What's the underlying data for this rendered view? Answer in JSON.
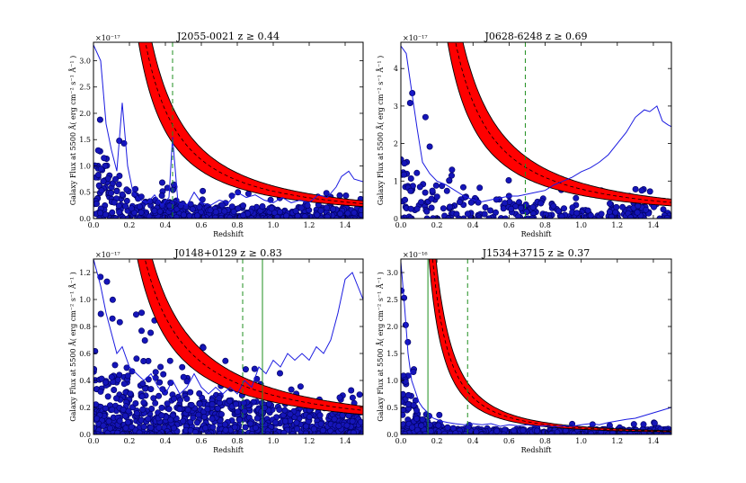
{
  "figure": {
    "axis_xlabel": "Redshift",
    "axis_ylabel": "Galaxy Flux at 5500 Å( erg cm⁻² s⁻¹ Å⁻¹ )"
  },
  "colors": {
    "points": "#1515b8",
    "points_edge": "#000060",
    "curve_line": "#1a1ae0",
    "band_fill": "#ff0000",
    "band_edge": "#000000",
    "zmin_line": "#1f8f1f"
  },
  "chart_data": [
    {
      "type": "scatter",
      "title": "J2055-0021 z ≥ 0.44",
      "xlabel": "Redshift",
      "ylabel": "Galaxy Flux at 5500 Å( erg cm⁻² s⁻¹ Å⁻¹ )",
      "xlim": [
        0.0,
        1.5
      ],
      "ylim": [
        0.0,
        3.35
      ],
      "y_scale_label": "×10⁻¹⁷",
      "x_ticks": [
        "0.0",
        "0.2",
        "0.4",
        "0.6",
        "0.8",
        "1.0",
        "1.2",
        "1.4"
      ],
      "y_ticks": [
        "0.0",
        "0.5",
        "1.0",
        "1.5",
        "2.0",
        "2.5",
        "3.0"
      ],
      "y_tick_values": [
        0,
        0.5,
        1.0,
        1.5,
        2.0,
        2.5,
        3.0
      ],
      "x_tick_values": [
        0,
        0.2,
        0.4,
        0.6,
        0.8,
        1.0,
        1.2,
        1.4
      ],
      "z_min": 0.44,
      "band": {
        "A_low": 0.42,
        "A_high": 0.62,
        "p": 1.5
      },
      "line_curve": [
        [
          0.0,
          3.3
        ],
        [
          0.04,
          3.0
        ],
        [
          0.07,
          1.8
        ],
        [
          0.1,
          1.3
        ],
        [
          0.13,
          0.9
        ],
        [
          0.16,
          2.2
        ],
        [
          0.19,
          1.0
        ],
        [
          0.22,
          0.5
        ],
        [
          0.26,
          0.35
        ],
        [
          0.3,
          0.3
        ],
        [
          0.34,
          0.45
        ],
        [
          0.38,
          0.25
        ],
        [
          0.42,
          0.4
        ],
        [
          0.44,
          1.55
        ],
        [
          0.47,
          0.3
        ],
        [
          0.52,
          0.25
        ],
        [
          0.56,
          0.5
        ],
        [
          0.6,
          0.3
        ],
        [
          0.65,
          0.25
        ],
        [
          0.7,
          0.35
        ],
        [
          0.75,
          0.3
        ],
        [
          0.8,
          0.5
        ],
        [
          0.85,
          0.4
        ],
        [
          0.9,
          0.45
        ],
        [
          0.95,
          0.35
        ],
        [
          1.0,
          0.3
        ],
        [
          1.05,
          0.4
        ],
        [
          1.1,
          0.3
        ],
        [
          1.15,
          0.35
        ],
        [
          1.2,
          0.3
        ],
        [
          1.25,
          0.45
        ],
        [
          1.3,
          0.4
        ],
        [
          1.35,
          0.6
        ],
        [
          1.38,
          0.8
        ],
        [
          1.42,
          0.9
        ],
        [
          1.45,
          0.75
        ],
        [
          1.5,
          0.7
        ]
      ],
      "scatter": {
        "seed": 11,
        "n": 620,
        "peak": 1.2,
        "decay": 6.0,
        "base": 0.22,
        "jitter": 0.35,
        "zmax_clip": 3.3,
        "hot_x": 0.44
      }
    },
    {
      "type": "scatter",
      "title": "J0628-6248 z ≥ 0.69",
      "xlabel": "Redshift",
      "ylabel": "Galaxy Flux at 5500 Å( erg cm⁻² s⁻¹ Å⁻¹ )",
      "xlim": [
        0.0,
        1.5
      ],
      "ylim": [
        0.0,
        4.7
      ],
      "y_scale_label": "×10⁻¹⁷",
      "x_ticks": [
        "0.0",
        "0.2",
        "0.4",
        "0.6",
        "0.8",
        "1.0",
        "1.2",
        "1.4"
      ],
      "y_ticks": [
        "0",
        "1",
        "2",
        "3",
        "4"
      ],
      "y_tick_values": [
        0,
        1,
        2,
        3,
        4
      ],
      "x_tick_values": [
        0,
        0.2,
        0.4,
        0.6,
        0.8,
        1.0,
        1.2,
        1.4
      ],
      "z_min": 0.69,
      "band": {
        "A_low": 0.62,
        "A_high": 0.95,
        "p": 1.5
      },
      "line_curve": [
        [
          0.0,
          4.6
        ],
        [
          0.03,
          4.4
        ],
        [
          0.06,
          3.4
        ],
        [
          0.09,
          2.4
        ],
        [
          0.12,
          1.5
        ],
        [
          0.16,
          1.2
        ],
        [
          0.2,
          1.0
        ],
        [
          0.25,
          0.9
        ],
        [
          0.3,
          0.75
        ],
        [
          0.35,
          0.6
        ],
        [
          0.4,
          0.5
        ],
        [
          0.45,
          0.45
        ],
        [
          0.5,
          0.5
        ],
        [
          0.55,
          0.55
        ],
        [
          0.6,
          0.6
        ],
        [
          0.65,
          0.6
        ],
        [
          0.7,
          0.65
        ],
        [
          0.75,
          0.7
        ],
        [
          0.8,
          0.75
        ],
        [
          0.85,
          0.9
        ],
        [
          0.9,
          1.0
        ],
        [
          0.95,
          1.1
        ],
        [
          1.0,
          1.25
        ],
        [
          1.05,
          1.35
        ],
        [
          1.1,
          1.5
        ],
        [
          1.15,
          1.7
        ],
        [
          1.2,
          2.0
        ],
        [
          1.25,
          2.3
        ],
        [
          1.3,
          2.7
        ],
        [
          1.35,
          2.9
        ],
        [
          1.38,
          2.85
        ],
        [
          1.42,
          3.0
        ],
        [
          1.45,
          2.6
        ],
        [
          1.48,
          2.5
        ],
        [
          1.5,
          2.45
        ]
      ],
      "scatter": {
        "seed": 23,
        "n": 300,
        "peak": 1.6,
        "decay": 4.0,
        "base": 0.35,
        "jitter": 0.45,
        "zmax_clip": 4.6,
        "hot_x": 1.3
      }
    },
    {
      "type": "scatter",
      "title": "J0148+0129 z ≥ 0.83",
      "xlabel": "Redshift",
      "ylabel": "Galaxy Flux at 5500 Å( erg cm⁻² s⁻¹ Å⁻¹ )",
      "xlim": [
        0.0,
        1.5
      ],
      "ylim": [
        0.0,
        1.3
      ],
      "y_scale_label": "×10⁻¹⁷",
      "x_ticks": [
        "0.0",
        "0.2",
        "0.4",
        "0.6",
        "0.8",
        "1.0",
        "1.2",
        "1.4"
      ],
      "y_ticks": [
        "0.0",
        "0.2",
        "0.4",
        "0.6",
        "0.8",
        "1.0",
        "1.2"
      ],
      "y_tick_values": [
        0,
        0.2,
        0.4,
        0.6,
        0.8,
        1.0,
        1.2
      ],
      "x_tick_values": [
        0,
        0.2,
        0.4,
        0.6,
        0.8,
        1.0,
        1.2,
        1.4
      ],
      "z_min": 0.83,
      "z_green": 0.94,
      "band": {
        "A_low": 0.24,
        "A_high": 0.34,
        "p": 1.2
      },
      "line_curve": [
        [
          0.0,
          1.3
        ],
        [
          0.04,
          1.1
        ],
        [
          0.07,
          0.9
        ],
        [
          0.1,
          0.75
        ],
        [
          0.13,
          0.6
        ],
        [
          0.16,
          0.65
        ],
        [
          0.2,
          0.5
        ],
        [
          0.24,
          0.45
        ],
        [
          0.28,
          0.4
        ],
        [
          0.32,
          0.45
        ],
        [
          0.36,
          0.35
        ],
        [
          0.4,
          0.3
        ],
        [
          0.44,
          0.4
        ],
        [
          0.48,
          0.3
        ],
        [
          0.52,
          0.35
        ],
        [
          0.56,
          0.45
        ],
        [
          0.6,
          0.35
        ],
        [
          0.64,
          0.3
        ],
        [
          0.68,
          0.35
        ],
        [
          0.72,
          0.3
        ],
        [
          0.76,
          0.35
        ],
        [
          0.8,
          0.3
        ],
        [
          0.84,
          0.4
        ],
        [
          0.88,
          0.35
        ],
        [
          0.92,
          0.5
        ],
        [
          0.96,
          0.45
        ],
        [
          1.0,
          0.55
        ],
        [
          1.04,
          0.5
        ],
        [
          1.08,
          0.6
        ],
        [
          1.12,
          0.55
        ],
        [
          1.16,
          0.6
        ],
        [
          1.2,
          0.55
        ],
        [
          1.24,
          0.65
        ],
        [
          1.28,
          0.6
        ],
        [
          1.32,
          0.7
        ],
        [
          1.36,
          0.9
        ],
        [
          1.4,
          1.15
        ],
        [
          1.44,
          1.2
        ],
        [
          1.47,
          1.1
        ],
        [
          1.5,
          1.0
        ]
      ],
      "scatter": {
        "seed": 37,
        "n": 900,
        "peak": 0.45,
        "decay": 1.5,
        "base": 0.12,
        "jitter": 0.22,
        "zmax_clip": 1.25,
        "hot_x": 1.42
      }
    },
    {
      "type": "scatter",
      "title": "J1534+3715 z ≥ 0.37",
      "xlabel": "Redshift",
      "ylabel": "Galaxy Flux at 5500 Å( erg cm⁻² s⁻¹ Å⁻¹ )",
      "xlim": [
        0.0,
        1.5
      ],
      "ylim": [
        0.0,
        3.25
      ],
      "y_scale_label": "×10⁻¹⁶",
      "x_ticks": [
        "0.0",
        "0.2",
        "0.4",
        "0.6",
        "0.8",
        "1.0",
        "1.2",
        "1.4"
      ],
      "y_ticks": [
        "0.0",
        "0.5",
        "1.0",
        "1.5",
        "2.0",
        "2.5",
        "3.0"
      ],
      "y_tick_values": [
        0,
        0.5,
        1.0,
        1.5,
        2.0,
        2.5,
        3.0
      ],
      "x_tick_values": [
        0,
        0.2,
        0.4,
        0.6,
        0.8,
        1.0,
        1.2,
        1.4
      ],
      "z_min": 0.37,
      "z_green": 0.15,
      "band": {
        "A_low": 0.095,
        "A_high": 0.145,
        "p": 1.9
      },
      "line_curve": [
        [
          0.0,
          3.2
        ],
        [
          0.02,
          2.4
        ],
        [
          0.04,
          1.5
        ],
        [
          0.06,
          1.0
        ],
        [
          0.08,
          0.8
        ],
        [
          0.1,
          0.6
        ],
        [
          0.12,
          0.5
        ],
        [
          0.15,
          0.4
        ],
        [
          0.18,
          0.3
        ],
        [
          0.22,
          0.25
        ],
        [
          0.26,
          0.22
        ],
        [
          0.3,
          0.2
        ],
        [
          0.35,
          0.18
        ],
        [
          0.4,
          0.2
        ],
        [
          0.45,
          0.18
        ],
        [
          0.5,
          0.2
        ],
        [
          0.55,
          0.15
        ],
        [
          0.6,
          0.18
        ],
        [
          0.65,
          0.16
        ],
        [
          0.7,
          0.18
        ],
        [
          0.75,
          0.15
        ],
        [
          0.8,
          0.16
        ],
        [
          0.85,
          0.14
        ],
        [
          0.9,
          0.16
        ],
        [
          0.95,
          0.15
        ],
        [
          1.0,
          0.18
        ],
        [
          1.05,
          0.2
        ],
        [
          1.1,
          0.18
        ],
        [
          1.15,
          0.22
        ],
        [
          1.2,
          0.25
        ],
        [
          1.25,
          0.28
        ],
        [
          1.3,
          0.3
        ],
        [
          1.35,
          0.35
        ],
        [
          1.4,
          0.4
        ],
        [
          1.45,
          0.45
        ],
        [
          1.5,
          0.5
        ]
      ],
      "scatter": {
        "seed": 53,
        "n": 650,
        "peak": 1.4,
        "decay": 14.0,
        "base": 0.1,
        "jitter": 0.12,
        "zmax_clip": 3.1,
        "hot_x": 1.4
      }
    }
  ]
}
